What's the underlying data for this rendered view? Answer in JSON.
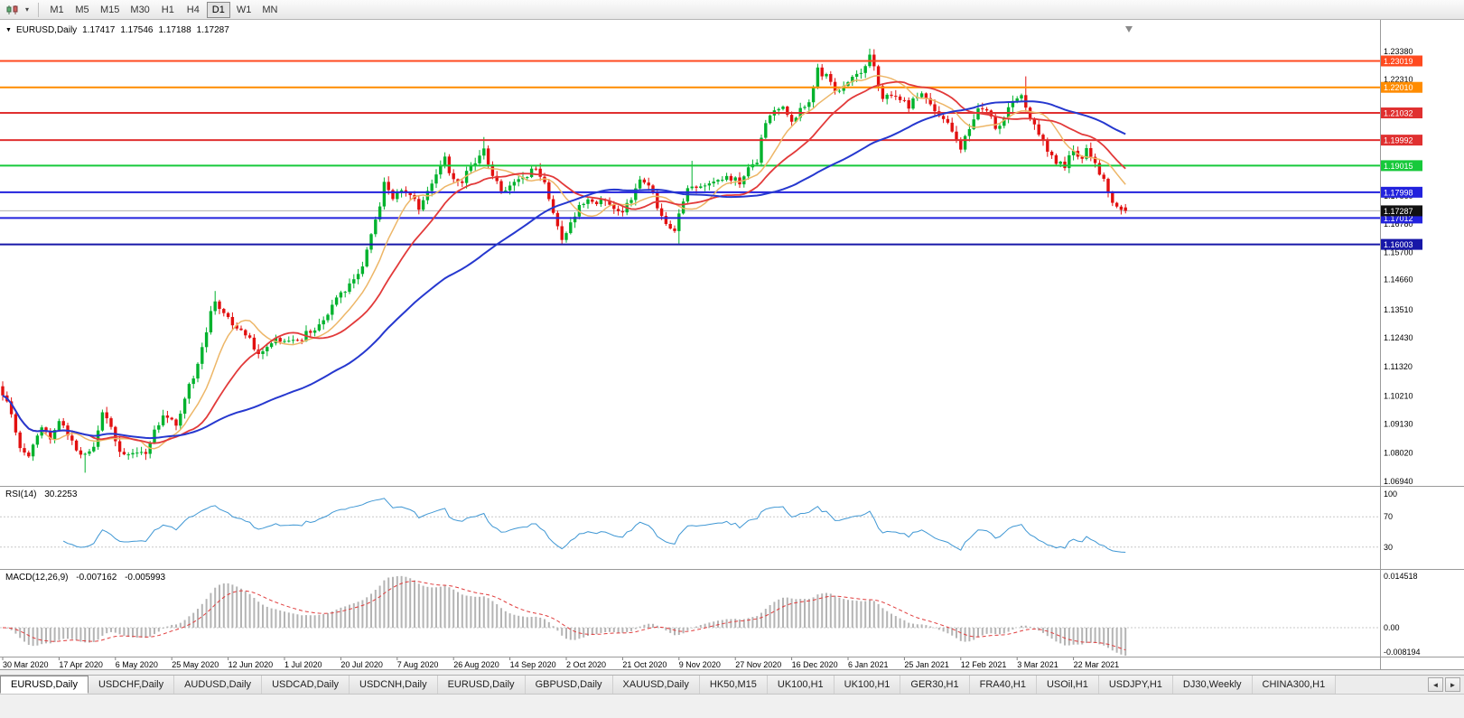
{
  "toolbar": {
    "timeframes": [
      "M1",
      "M5",
      "M15",
      "M30",
      "H1",
      "H4",
      "D1",
      "W1",
      "MN"
    ],
    "active_timeframe": "D1",
    "icons": {
      "chart_type": "candlestick-chart-icon",
      "dropdown": "chevron-down-icon"
    },
    "dropdown_glyph": "▾"
  },
  "chart": {
    "symbol": "EURUSD,Daily",
    "open": "1.17417",
    "high": "1.17546",
    "low": "1.17188",
    "close": "1.17287",
    "menu_arrow": "▼"
  },
  "rsi": {
    "label": "RSI(14)",
    "value": "30.2253",
    "axis_labels": [
      {
        "text": "100",
        "value": 100
      },
      {
        "text": "70",
        "value": 70
      },
      {
        "text": "30",
        "value": 30
      }
    ],
    "levels": [
      70,
      30
    ],
    "line_color": "#3f97d4"
  },
  "macd": {
    "label": "MACD(12,26,9)",
    "value": "-0.007162",
    "signal": "-0.005993",
    "axis_labels": [
      {
        "text": "0.014518",
        "value": 0.014518
      },
      {
        "text": "0.00",
        "value": 0
      },
      {
        "text": "-0.008194",
        "value": -0.008194
      }
    ],
    "histogram_color": "#b4b4b4",
    "signal_color": "#e03c3c"
  },
  "price_axis": {
    "plain_labels": [
      {
        "text": "1.23380",
        "value": 1.2338
      },
      {
        "text": "1.22310",
        "value": 1.2231
      },
      {
        "text": "1.17860",
        "value": 1.1786
      },
      {
        "text": "1.16780",
        "value": 1.1678
      },
      {
        "text": "1.15700",
        "value": 1.157
      },
      {
        "text": "1.14660",
        "value": 1.1466
      },
      {
        "text": "1.13510",
        "value": 1.1351
      },
      {
        "text": "1.12430",
        "value": 1.1243
      },
      {
        "text": "1.11320",
        "value": 1.1132
      },
      {
        "text": "1.10210",
        "value": 1.1021
      },
      {
        "text": "1.09130",
        "value": 1.0913
      },
      {
        "text": "1.08020",
        "value": 1.0802
      },
      {
        "text": "1.06940",
        "value": 1.0694
      }
    ]
  },
  "time_axis": {
    "bars_per_label": 13,
    "labels": [
      "30 Mar 2020",
      "17 Apr 2020",
      "6 May 2020",
      "25 May 2020",
      "12 Jun 2020",
      "1 Jul 2020",
      "20 Jul 2020",
      "7 Aug 2020",
      "26 Aug 2020",
      "14 Sep 2020",
      "2 Oct 2020",
      "21 Oct 2020",
      "9 Nov 2020",
      "27 Nov 2020",
      "16 Dec 2020",
      "6 Jan 2021",
      "25 Jan 2021",
      "12 Feb 2021",
      "3 Mar 2021",
      "22 Mar 2021"
    ]
  },
  "hlines": [
    {
      "price": 1.23019,
      "label": "1.23019",
      "color": "#ff4a1f"
    },
    {
      "price": 1.2201,
      "label": "1.22010",
      "color": "#ff8c00"
    },
    {
      "price": 1.21032,
      "label": "1.21032",
      "color": "#e03030"
    },
    {
      "price": 1.19992,
      "label": "1.19992",
      "color": "#e03030"
    },
    {
      "price": 1.19015,
      "label": "1.19015",
      "color": "#17c93b"
    },
    {
      "price": 1.17998,
      "label": "1.17998",
      "color": "#2222dd"
    },
    {
      "price": 1.17012,
      "label": "1.17012",
      "color": "#2222dd"
    },
    {
      "price": 1.16003,
      "label": "1.16003",
      "color": "#1717a8"
    }
  ],
  "current_price": {
    "value": 1.17287,
    "label": "1.17287",
    "badge_color": "#111111",
    "line_color": "#b0b0b0"
  },
  "chart_data": {
    "type": "candlestick",
    "symbol": "EURUSD",
    "timeframe": "Daily",
    "bars": 260,
    "x_range": [
      "30 Mar 2020",
      "31 Mar 2021"
    ],
    "price_scale": {
      "min": 1.068,
      "max": 1.239
    },
    "up_color": "#00b22d",
    "down_color": "#e21010",
    "ma": [
      {
        "type": "sma",
        "period": 10,
        "color": "#edb667",
        "width": 1.5
      },
      {
        "type": "sma",
        "period": 21,
        "color": "#e23a3a",
        "width": 1.8
      },
      {
        "type": "sma",
        "period": 55,
        "color": "#2638cf",
        "width": 2
      }
    ],
    "price_path_anchors": [
      [
        0,
        1.103
      ],
      [
        2,
        1.095
      ],
      [
        4,
        1.082
      ],
      [
        6,
        1.0795
      ],
      [
        9,
        1.091
      ],
      [
        11,
        1.086
      ],
      [
        13,
        1.093
      ],
      [
        15,
        1.0875
      ],
      [
        17,
        1.08
      ],
      [
        19,
        1.079
      ],
      [
        21,
        1.0825
      ],
      [
        23,
        1.0955
      ],
      [
        25,
        1.0905
      ],
      [
        27,
        1.0795
      ],
      [
        29,
        1.081
      ],
      [
        31,
        1.0808
      ],
      [
        33,
        1.08
      ],
      [
        36,
        1.092
      ],
      [
        38,
        1.095
      ],
      [
        40,
        1.09
      ],
      [
        42,
        1.101
      ],
      [
        44,
        1.11
      ],
      [
        46,
        1.12
      ],
      [
        48,
        1.134
      ],
      [
        49,
        1.1375
      ],
      [
        51,
        1.134
      ],
      [
        53,
        1.13
      ],
      [
        55,
        1.126
      ],
      [
        57,
        1.124
      ],
      [
        59,
        1.118
      ],
      [
        61,
        1.121
      ],
      [
        63,
        1.125
      ],
      [
        65,
        1.122
      ],
      [
        67,
        1.1245
      ],
      [
        69,
        1.124
      ],
      [
        71,
        1.1275
      ],
      [
        73,
        1.129
      ],
      [
        75,
        1.132
      ],
      [
        77,
        1.1405
      ],
      [
        79,
        1.143
      ],
      [
        81,
        1.1465
      ],
      [
        83,
        1.151
      ],
      [
        85,
        1.165
      ],
      [
        87,
        1.175
      ],
      [
        88,
        1.1845
      ],
      [
        90,
        1.178
      ],
      [
        92,
        1.1805
      ],
      [
        94,
        1.1785
      ],
      [
        96,
        1.174
      ],
      [
        98,
        1.1815
      ],
      [
        100,
        1.187
      ],
      [
        102,
        1.193
      ],
      [
        104,
        1.184
      ],
      [
        106,
        1.1835
      ],
      [
        108,
        1.1905
      ],
      [
        110,
        1.194
      ],
      [
        111,
        1.196
      ],
      [
        113,
        1.185
      ],
      [
        115,
        1.1815
      ],
      [
        117,
        1.182
      ],
      [
        119,
        1.1855
      ],
      [
        121,
        1.187
      ],
      [
        123,
        1.1885
      ],
      [
        125,
        1.184
      ],
      [
        127,
        1.171
      ],
      [
        129,
        1.163
      ],
      [
        131,
        1.168
      ],
      [
        133,
        1.174
      ],
      [
        135,
        1.1785
      ],
      [
        137,
        1.176
      ],
      [
        139,
        1.1765
      ],
      [
        141,
        1.1745
      ],
      [
        143,
        1.172
      ],
      [
        145,
        1.1775
      ],
      [
        147,
        1.186
      ],
      [
        149,
        1.183
      ],
      [
        151,
        1.1745
      ],
      [
        153,
        1.1675
      ],
      [
        155,
        1.164
      ],
      [
        156,
        1.1715
      ],
      [
        158,
        1.1825
      ],
      [
        160,
        1.181
      ],
      [
        162,
        1.1815
      ],
      [
        164,
        1.1835
      ],
      [
        166,
        1.185
      ],
      [
        168,
        1.1855
      ],
      [
        170,
        1.184
      ],
      [
        172,
        1.189
      ],
      [
        174,
        1.1925
      ],
      [
        176,
        1.207
      ],
      [
        178,
        1.2105
      ],
      [
        180,
        1.212
      ],
      [
        182,
        1.208
      ],
      [
        184,
        1.211
      ],
      [
        186,
        1.2155
      ],
      [
        188,
        1.2265
      ],
      [
        190,
        1.224
      ],
      [
        192,
        1.2185
      ],
      [
        194,
        1.2215
      ],
      [
        196,
        1.225
      ],
      [
        198,
        1.2255
      ],
      [
        200,
        1.233
      ],
      [
        202,
        1.2215
      ],
      [
        203,
        1.2155
      ],
      [
        205,
        1.217
      ],
      [
        207,
        1.216
      ],
      [
        209,
        1.213
      ],
      [
        211,
        1.2165
      ],
      [
        213,
        1.217
      ],
      [
        215,
        1.211
      ],
      [
        217,
        1.2085
      ],
      [
        219,
        1.204
      ],
      [
        221,
        1.1965
      ],
      [
        223,
        1.2045
      ],
      [
        225,
        1.212
      ],
      [
        227,
        1.212
      ],
      [
        229,
        1.2055
      ],
      [
        231,
        1.2075
      ],
      [
        233,
        1.216
      ],
      [
        235,
        1.217
      ],
      [
        237,
        1.2095
      ],
      [
        239,
        1.203
      ],
      [
        241,
        1.1965
      ],
      [
        243,
        1.192
      ],
      [
        245,
        1.1905
      ],
      [
        247,
        1.1955
      ],
      [
        249,
        1.193
      ],
      [
        250,
        1.198
      ],
      [
        252,
        1.1905
      ],
      [
        254,
        1.185
      ],
      [
        256,
        1.1765
      ],
      [
        258,
        1.1745
      ],
      [
        259,
        1.17287
      ]
    ],
    "spikes": [
      {
        "i": 19,
        "low": 1.0727
      },
      {
        "i": 33,
        "low": 1.0776
      },
      {
        "i": 49,
        "high": 1.1422
      },
      {
        "i": 111,
        "high": 1.2011
      },
      {
        "i": 129,
        "low": 1.1612
      },
      {
        "i": 156,
        "low": 1.1603
      },
      {
        "i": 159,
        "high": 1.192
      },
      {
        "i": 188,
        "high": 1.2273
      },
      {
        "i": 200,
        "high": 1.2349
      },
      {
        "i": 236,
        "high": 1.2243
      },
      {
        "i": 251,
        "high": 1.199
      },
      {
        "i": 259,
        "low": 1.17188
      }
    ]
  },
  "tabs": {
    "items": [
      "EURUSD,Daily",
      "USDCHF,Daily",
      "AUDUSD,Daily",
      "USDCAD,Daily",
      "USDCNH,Daily",
      "EURUSD,Daily",
      "GBPUSD,Daily",
      "XAUUSD,Daily",
      "HK50,M15",
      "UK100,H1",
      "UK100,H1",
      "GER30,H1",
      "FRA40,H1",
      "USOil,H1",
      "USDJPY,H1",
      "DJ30,Weekly",
      "CHINA300,H1"
    ],
    "active_index": 0,
    "scroll_left_icon": "◄",
    "scroll_right_icon": "►"
  }
}
